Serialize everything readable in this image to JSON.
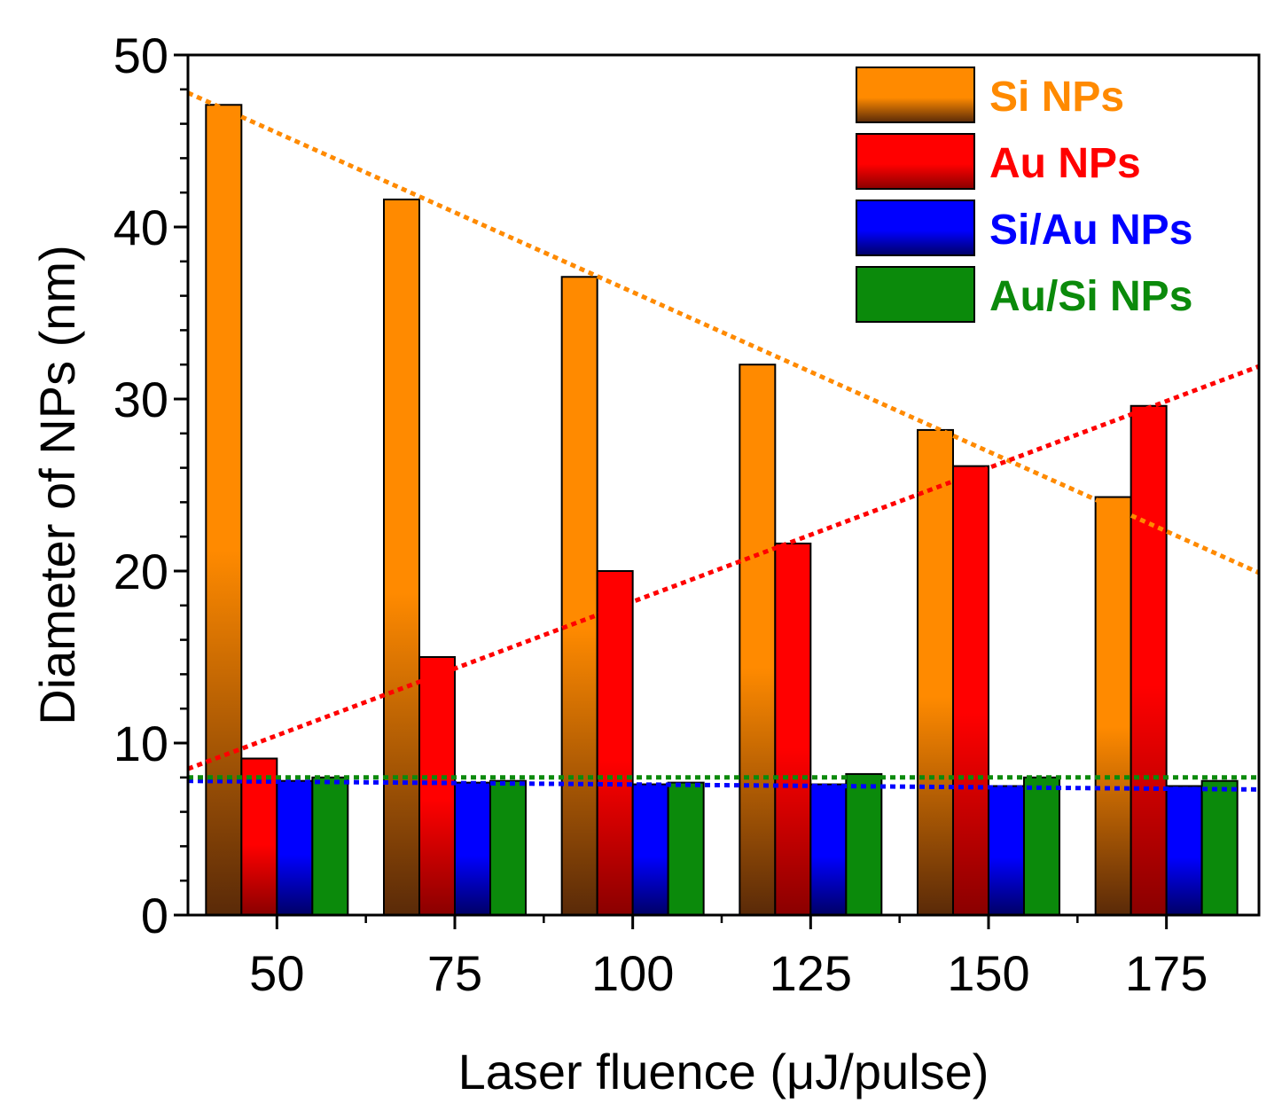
{
  "chart_data": {
    "type": "bar",
    "title": "",
    "xlabel": "Laser fluence (μJ/pulse)",
    "ylabel": "Diameter of NPs (nm)",
    "categories": [
      "50",
      "75",
      "100",
      "125",
      "150",
      "175"
    ],
    "x": [
      50,
      75,
      100,
      125,
      150,
      175
    ],
    "xlim": [
      37.5,
      188
    ],
    "ylim": [
      0,
      50
    ],
    "yticks": [
      "0",
      "10",
      "20",
      "30",
      "40",
      "50"
    ],
    "grid": false,
    "legend_position": "top-right",
    "series": [
      {
        "name": "Si NPs",
        "color": "#ff8a00",
        "color_dark": "#5a2a08",
        "values": [
          47.1,
          41.6,
          37.1,
          32.0,
          28.2,
          24.3
        ]
      },
      {
        "name": "Au NPs",
        "color": "#ff0000",
        "color_dark": "#8a0000",
        "values": [
          9.1,
          15.0,
          20.0,
          21.6,
          26.1,
          29.6
        ]
      },
      {
        "name": "Si/Au NPs",
        "color": "#0000ff",
        "color_dark": "#000066",
        "values": [
          7.8,
          7.7,
          7.6,
          7.6,
          7.5,
          7.5
        ]
      },
      {
        "name": "Au/Si NPs",
        "color": "#0b8a0b",
        "color_dark": "#0b8a0b",
        "values": [
          8.0,
          7.8,
          7.7,
          8.2,
          8.0,
          7.8
        ]
      }
    ],
    "trendlines": [
      {
        "series": "Si NPs",
        "color": "#ff8a00",
        "points": [
          [
            37.5,
            47.8
          ],
          [
            188,
            19.9
          ]
        ]
      },
      {
        "series": "Au NPs",
        "color": "#ff0000",
        "points": [
          [
            37.5,
            8.5
          ],
          [
            188,
            31.9
          ]
        ]
      },
      {
        "series": "Si/Au NPs",
        "color": "#0000ff",
        "points": [
          [
            37.5,
            7.8
          ],
          [
            188,
            7.3
          ]
        ]
      },
      {
        "series": "Au/Si NPs",
        "color": "#0b8a0b",
        "points": [
          [
            37.5,
            8.0
          ],
          [
            188,
            8.0
          ]
        ]
      }
    ]
  }
}
